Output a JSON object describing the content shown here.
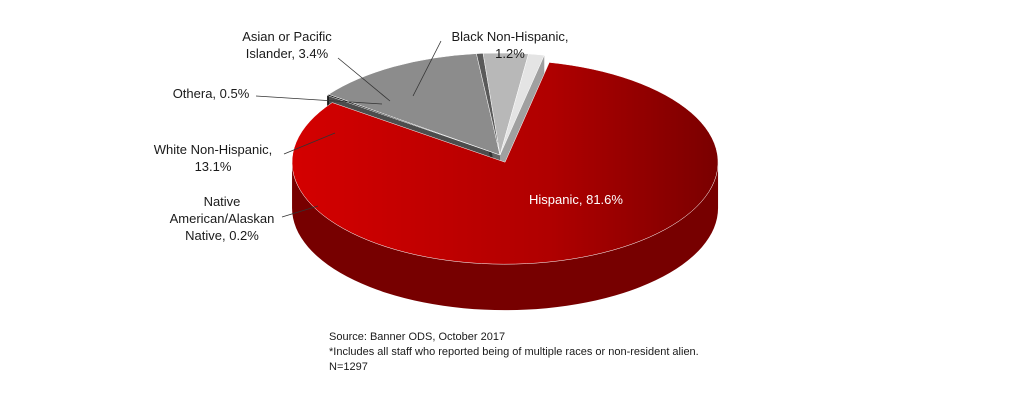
{
  "chart_data": {
    "type": "pie",
    "three_d": true,
    "slices": [
      {
        "label": "Hispanic",
        "value": 81.6,
        "label_lines": [
          "Hispanic, 81.6%"
        ],
        "color": "#c00000",
        "exploded": true
      },
      {
        "label": "Native American/Alaskan Native",
        "value": 0.2,
        "label_lines": [
          "Native",
          "American/Alaskan",
          "Native, 0.2%"
        ],
        "color": "#141414"
      },
      {
        "label": "White Non-Hispanic",
        "value": 13.1,
        "label_lines": [
          "White Non-Hispanic,",
          "13.1%"
        ],
        "color": "#8c8c8c"
      },
      {
        "label": "Othera",
        "value": 0.5,
        "label_lines": [
          "Othera, 0.5%"
        ],
        "color": "#5a5a5a"
      },
      {
        "label": "Asian or Pacific Islander",
        "value": 3.4,
        "label_lines": [
          "Asian or Pacific",
          "Islander, 3.4%"
        ],
        "color": "#b8b8b8"
      },
      {
        "label": "Black Non-Hispanic",
        "value": 1.2,
        "label_lines": [
          "Black Non-Hispanic,",
          "1.2%"
        ],
        "color": "#e4e4e4"
      }
    ]
  },
  "notes": {
    "source": "Source: Banner ODS, October 2017",
    "footnote": "*Includes all staff who reported being of multiple races or non-resident alien.",
    "n": "N=1297"
  }
}
